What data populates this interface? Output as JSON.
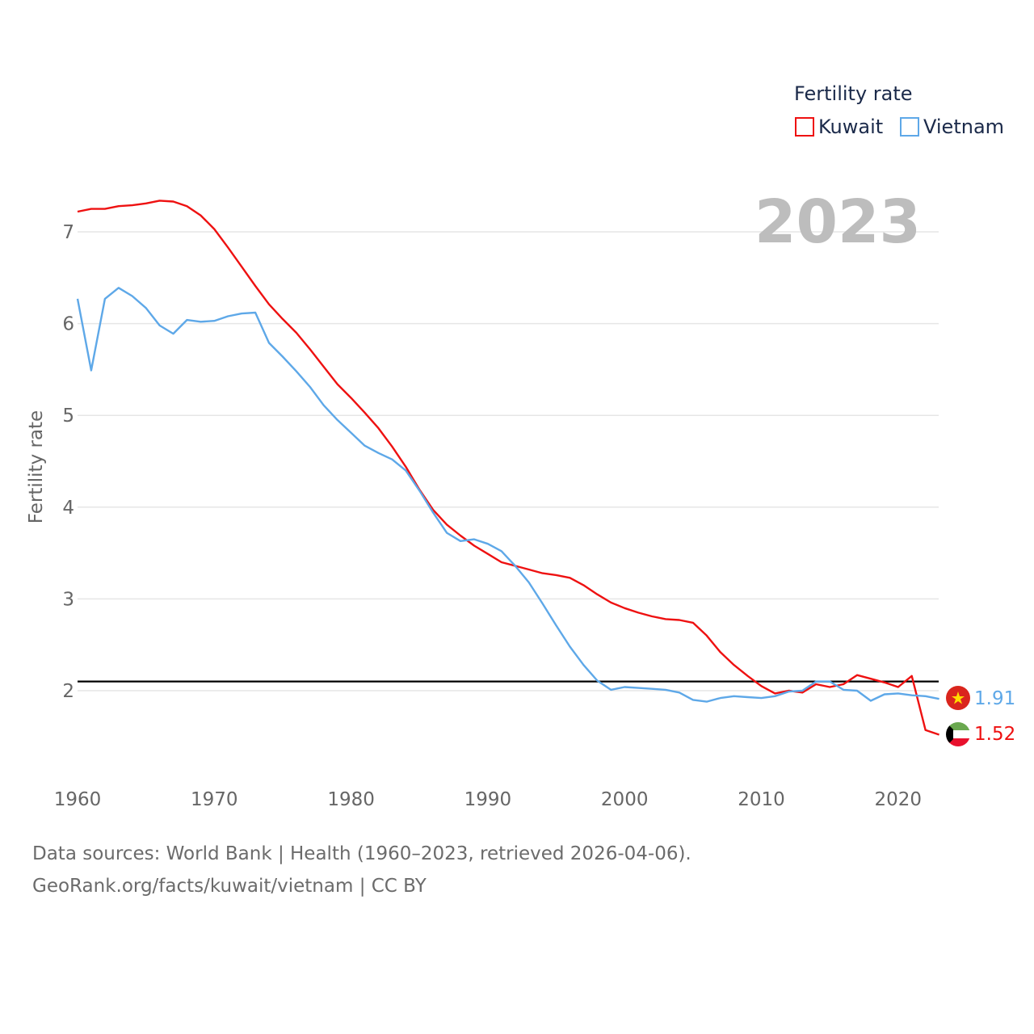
{
  "legend": {
    "title": "Fertility rate",
    "items": [
      {
        "name": "Kuwait",
        "color": "#ee1111"
      },
      {
        "name": "Vietnam",
        "color": "#5ea8e8"
      }
    ]
  },
  "year_display": "2023",
  "source": {
    "line1": "Data sources: World Bank | Health (1960–2023, retrieved 2026-04-06).",
    "line2": "GeoRank.org/facts/kuwait/vietnam | CC BY"
  },
  "end_labels": {
    "vietnam": "1.91",
    "kuwait": "1.52"
  },
  "flags": {
    "vietnam": {
      "red": "#da251d",
      "star": "#ffdd00"
    },
    "kuwait": {
      "green": "#6aa84f",
      "white": "#ffffff",
      "red": "#e8112d",
      "black": "#000000"
    }
  },
  "chart_data": {
    "type": "line",
    "title": "",
    "xlabel": "",
    "ylabel": "Fertility rate",
    "xlim": [
      1960,
      2023
    ],
    "ylim": [
      1.0,
      7.7
    ],
    "xticks": [
      1960,
      1970,
      1980,
      1990,
      2000,
      2010,
      2020
    ],
    "yticks": [
      2,
      3,
      4,
      5,
      6,
      7
    ],
    "reference_line": {
      "y": 2.1,
      "color": "#000000"
    },
    "x": [
      1960,
      1961,
      1962,
      1963,
      1964,
      1965,
      1966,
      1967,
      1968,
      1969,
      1970,
      1971,
      1972,
      1973,
      1974,
      1975,
      1976,
      1977,
      1978,
      1979,
      1980,
      1981,
      1982,
      1983,
      1984,
      1985,
      1986,
      1987,
      1988,
      1989,
      1990,
      1991,
      1992,
      1993,
      1994,
      1995,
      1996,
      1997,
      1998,
      1999,
      2000,
      2001,
      2002,
      2003,
      2004,
      2005,
      2006,
      2007,
      2008,
      2009,
      2010,
      2011,
      2012,
      2013,
      2014,
      2015,
      2016,
      2017,
      2018,
      2019,
      2020,
      2021,
      2022,
      2023
    ],
    "series": [
      {
        "name": "Kuwait",
        "color": "#ee1111",
        "values": [
          7.22,
          7.25,
          7.25,
          7.28,
          7.29,
          7.31,
          7.34,
          7.33,
          7.28,
          7.18,
          7.03,
          6.83,
          6.62,
          6.41,
          6.21,
          6.05,
          5.9,
          5.72,
          5.53,
          5.34,
          5.19,
          5.03,
          4.86,
          4.66,
          4.44,
          4.19,
          3.97,
          3.81,
          3.69,
          3.58,
          3.49,
          3.4,
          3.36,
          3.32,
          3.28,
          3.26,
          3.23,
          3.15,
          3.05,
          2.96,
          2.9,
          2.85,
          2.81,
          2.78,
          2.77,
          2.74,
          2.6,
          2.42,
          2.28,
          2.16,
          2.05,
          1.97,
          2.0,
          1.98,
          2.07,
          2.04,
          2.07,
          2.17,
          2.13,
          2.09,
          2.04,
          2.16,
          1.57,
          1.52
        ]
      },
      {
        "name": "Vietnam",
        "color": "#5ea8e8",
        "values": [
          6.27,
          5.49,
          6.27,
          6.39,
          6.3,
          6.17,
          5.98,
          5.89,
          6.04,
          6.02,
          6.03,
          6.08,
          6.11,
          6.12,
          5.79,
          5.64,
          5.48,
          5.31,
          5.11,
          4.95,
          4.81,
          4.67,
          4.59,
          4.52,
          4.4,
          4.18,
          3.94,
          3.72,
          3.63,
          3.65,
          3.6,
          3.52,
          3.36,
          3.18,
          2.95,
          2.71,
          2.48,
          2.28,
          2.11,
          2.01,
          2.04,
          2.03,
          2.02,
          2.01,
          1.98,
          1.9,
          1.88,
          1.92,
          1.94,
          1.93,
          1.92,
          1.94,
          1.99,
          2.0,
          2.1,
          2.1,
          2.01,
          2.0,
          1.89,
          1.96,
          1.97,
          1.95,
          1.94,
          1.91
        ]
      }
    ]
  }
}
